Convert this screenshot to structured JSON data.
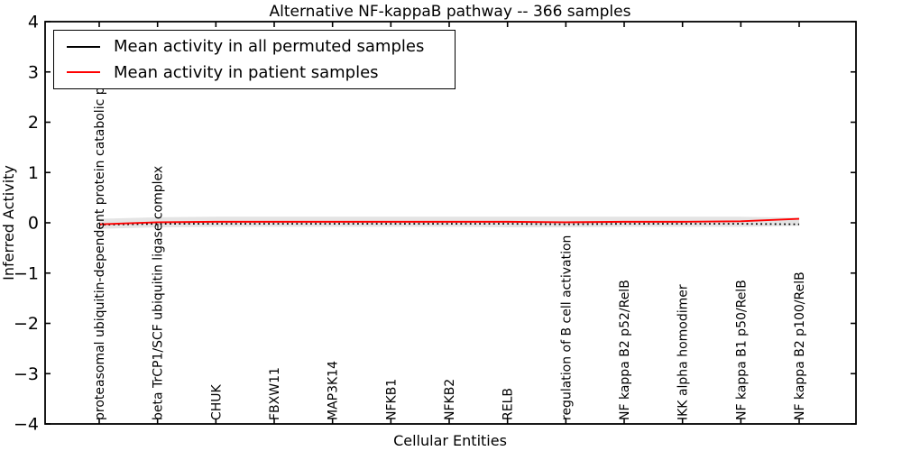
{
  "figure": {
    "title": "Alternative NF-kappaB pathway -- 366 samples",
    "xlabel": "Cellular Entities",
    "ylabel": "Inferred Activity"
  },
  "legend": {
    "entries": [
      {
        "label": "Mean activity in all permuted samples",
        "color": "#000000"
      },
      {
        "label": "Mean activity in patient samples",
        "color": "#ff0000"
      }
    ],
    "position": "upper left"
  },
  "colors": {
    "patient_line": "#ff0000",
    "permuted_line": "#000000",
    "spread_band": "#e4e4e4",
    "axes": "#000000",
    "background": "#ffffff"
  },
  "chart_data": {
    "type": "line",
    "title": "Alternative NF-kappaB pathway -- 366 samples",
    "xlabel": "Cellular Entities",
    "ylabel": "Inferred Activity",
    "ylim": [
      -4,
      4
    ],
    "yticks": [
      -4,
      -3,
      -2,
      -1,
      0,
      1,
      2,
      3,
      4
    ],
    "ytick_labels": [
      "−4",
      "−3",
      "−2",
      "−1",
      "0",
      "1",
      "2",
      "3",
      "4"
    ],
    "grid": false,
    "legend_position": "upper left",
    "categories": [
      "proteasomal ubiquitin-dependent protein catabolic process",
      "beta TrCP1/SCF ubiquitin ligase complex",
      "CHUK",
      "FBXW11",
      "MAP3K14",
      "NFKB1",
      "NFKB2",
      "RELB",
      "regulation of B cell activation",
      "NF kappa B2 p52/RelB",
      "IKK alpha homodimer",
      "NF kappa B1 p50/RelB",
      "NF kappa B2 p100/RelB"
    ],
    "series": [
      {
        "name": "Mean activity in all permuted samples",
        "color": "#000000",
        "line_style": "dotted",
        "values": [
          -0.04,
          -0.02,
          -0.02,
          -0.02,
          -0.02,
          -0.02,
          -0.02,
          -0.02,
          -0.03,
          -0.02,
          -0.02,
          -0.02,
          -0.03
        ]
      },
      {
        "name": "Mean activity in patient samples",
        "color": "#ff0000",
        "line_style": "solid",
        "values": [
          -0.03,
          0.01,
          0.02,
          0.02,
          0.02,
          0.02,
          0.02,
          0.02,
          0.01,
          0.02,
          0.02,
          0.03,
          0.08
        ]
      }
    ],
    "band": {
      "name": "permuted activity spread",
      "color": "#e4e4e4",
      "upper": [
        0.08,
        0.11,
        0.12,
        0.12,
        0.12,
        0.12,
        0.12,
        0.12,
        0.12,
        0.12,
        0.12,
        0.12,
        0.1
      ],
      "lower": [
        -0.12,
        -0.09,
        -0.08,
        -0.08,
        -0.08,
        -0.08,
        -0.08,
        -0.09,
        -0.09,
        -0.08,
        -0.08,
        -0.08,
        -0.06
      ]
    }
  }
}
